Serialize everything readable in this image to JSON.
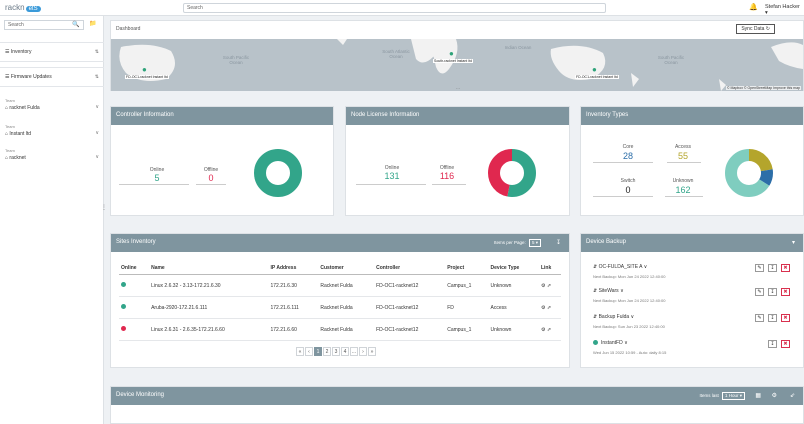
{
  "topbar": {
    "logo_text": "rackn",
    "logo_badge": "etS",
    "search_placeholder": "Search",
    "user_label": "Stefan Hacker ▾"
  },
  "sidebar": {
    "search_placeholder": "Search",
    "nav": [
      {
        "label": "☰ Inventory"
      },
      {
        "label": "☰ Firmware Updates"
      }
    ],
    "groups": [
      {
        "type": "Team",
        "value": "⌂ racknet Fulda"
      },
      {
        "type": "Team",
        "value": "⌂ Instant ltd"
      },
      {
        "type": "Team",
        "value": "⌂ racknet"
      }
    ]
  },
  "map": {
    "title": "Dashboard",
    "sync_label": "Sync Data ↻",
    "oceans": [
      {
        "label": "South Pacific Ocean"
      },
      {
        "label": "South Atlantic Ocean"
      },
      {
        "label": "Indian Ocean"
      },
      {
        "label": "South Pacific Ocean"
      }
    ],
    "pins": [
      {
        "label": "FD-OC1-racknet Instant ltd"
      },
      {
        "label": "South-racknet Instant ltd"
      },
      {
        "label": "FD-OC1-racknet Instant ltd"
      }
    ],
    "attribution": "© Mapbox © OpenStreetMap Improve this map"
  },
  "controller": {
    "title": "Controller Information",
    "online_label": "Online",
    "online_value": "5",
    "offline_label": "Offline",
    "offline_value": "0"
  },
  "license": {
    "title": "Node License Information",
    "online_label": "Online",
    "online_value": "131",
    "offline_label": "Offline",
    "offline_value": "116"
  },
  "inventory_types": {
    "title": "Inventory Types",
    "core_label": "Core",
    "core_value": "28",
    "access_label": "Access",
    "access_value": "55",
    "switch_label": "Switch",
    "switch_value": "0",
    "unknown_label": "Unknown",
    "unknown_value": "162"
  },
  "donuts": {
    "controller": [
      {
        "value": 5,
        "color": "#32a58a"
      }
    ],
    "license": [
      {
        "value": 131,
        "color": "#32a58a"
      },
      {
        "value": 116,
        "color": "#e0284f"
      }
    ],
    "inventory": [
      {
        "value": 55,
        "color": "#b4a52c"
      },
      {
        "value": 28,
        "color": "#2c6ea8"
      },
      {
        "value": 162,
        "color": "#7fcdbf"
      }
    ]
  },
  "colors": {
    "online": "#32a58a",
    "offline": "#e0284f",
    "header": "#7f959f",
    "accent": "#3a9ad9"
  },
  "sites": {
    "title": "Sites Inventory",
    "items_per_page_label": "Items per Page:",
    "items_per_page_value": "5 ▾",
    "columns": [
      "Online",
      "Name",
      "IP Address",
      "Customer",
      "Controller",
      "Project",
      "Device Type",
      "Link"
    ],
    "rows": [
      {
        "status": "online",
        "name": "Linux 2.6.32 - 3.13-172.21.6.30",
        "ip": "172.21.6.30",
        "customer": "Racknet Fulda",
        "controller": "FD-OC1-racknet12",
        "project": "Campus_1",
        "type": "Unknown",
        "link": "⚙ ⇗"
      },
      {
        "status": "online",
        "name": "Aruba-2920-172.21.6.111",
        "ip": "172.21.6.111",
        "customer": "Racknet Fulda",
        "controller": "FD-OC1-racknet12",
        "project": "FD",
        "type": "Access",
        "link": "⚙ ⇗"
      },
      {
        "status": "offline",
        "name": "Linux 2.6.31 - 2.6.35-172.21.6.60",
        "ip": "172.21.6.60",
        "customer": "Racknet Fulda",
        "controller": "FD-OC1-racknet12",
        "project": "Campus_1",
        "type": "Unknown",
        "link": "⚙ ⇗"
      }
    ],
    "pages": [
      "«",
      "‹",
      "1",
      "2",
      "3",
      "4",
      "...",
      "›",
      "»"
    ]
  },
  "backup": {
    "title": "Device Backup",
    "items": [
      {
        "label": "⇵ OC-FULDA_SITE A ∨",
        "sub": "Next Backup: Mon Jun 24 2022 12:40:00"
      },
      {
        "label": "⇵ SiteWars ∨",
        "sub": "Next Backup: Mon Jun 24 2022 12:40:00"
      },
      {
        "label": "⇵ Backup Fulda ∨",
        "sub": "Next Backup: Sun Jun 23 2022 12:40:00"
      },
      {
        "label": "InstantFD ∨",
        "sub": "Wed Jun 15 2022 10:59 - Auto: daily 8:15"
      }
    ]
  },
  "monitoring": {
    "title": "Device Monitoring",
    "items_label": "Items last",
    "range_value": "1 Hour ▾"
  }
}
